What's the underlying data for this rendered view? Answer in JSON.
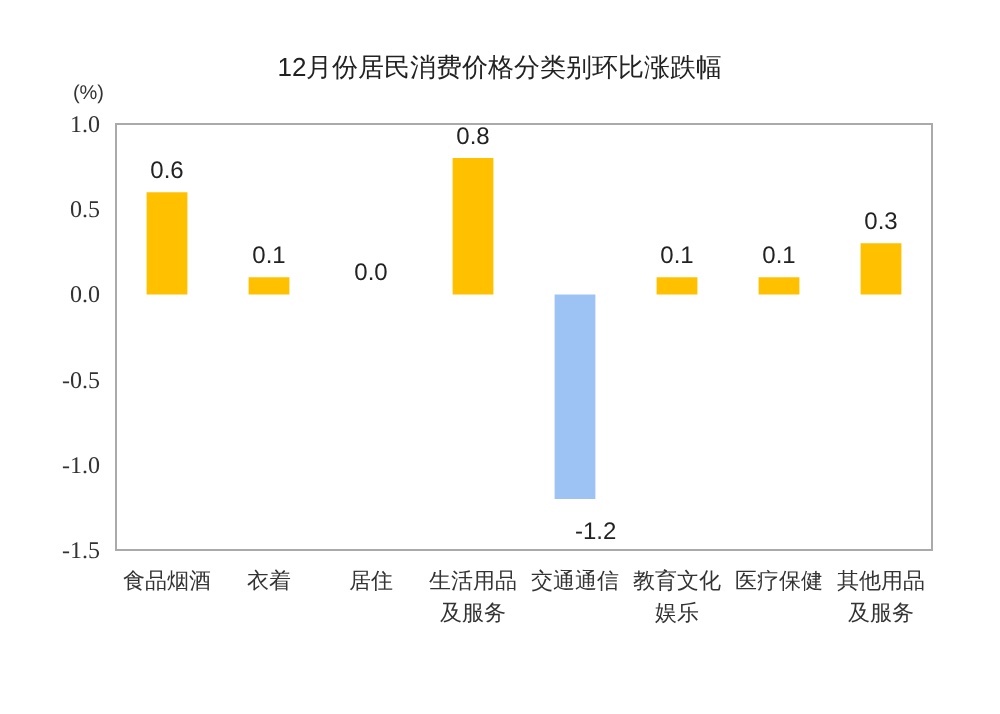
{
  "chart_data": {
    "type": "bar",
    "title": "12月份居民消费价格分类别环比涨跌幅",
    "ylabel": "(%)",
    "categories": [
      "食品烟酒",
      "衣着",
      "居住",
      "生活用品及服务",
      "交通通信",
      "教育文化娱乐",
      "医疗保健",
      "其他用品及服务"
    ],
    "values": [
      0.6,
      0.1,
      0.0,
      0.8,
      -1.2,
      0.1,
      0.1,
      0.3
    ],
    "value_labels": [
      "0.6",
      "0.1",
      "0.0",
      "0.8",
      "-1.2",
      "0.1",
      "0.1",
      "0.3"
    ],
    "colors": [
      "#ffc000",
      "#ffc000",
      "#ffc000",
      "#ffc000",
      "#9dc3f5",
      "#ffc000",
      "#ffc000",
      "#ffc000"
    ],
    "ylim": [
      -1.5,
      1.0
    ],
    "yticks": [
      {
        "value": -1.5,
        "label": "-1.5"
      },
      {
        "value": -1.0,
        "label": "-1.0"
      },
      {
        "value": -0.5,
        "label": "-0.5"
      },
      {
        "value": 0.0,
        "label": "0.0"
      },
      {
        "value": 0.5,
        "label": "0.5"
      },
      {
        "value": 1.0,
        "label": "1.0"
      }
    ],
    "grid": false
  }
}
